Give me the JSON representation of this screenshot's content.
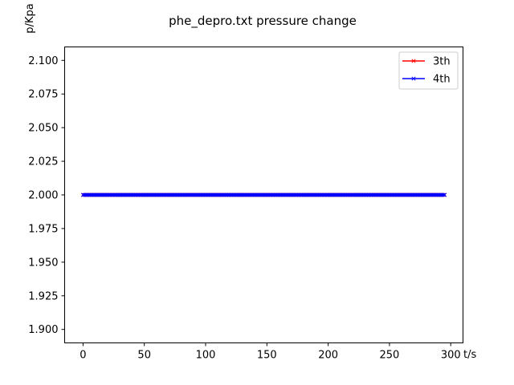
{
  "chart_data": {
    "type": "line",
    "title": "phe_depro.txt pressure change",
    "xlabel": "t/s",
    "ylabel": "p/Kpa",
    "xlim": [
      -15,
      310
    ],
    "ylim": [
      1.89,
      2.11
    ],
    "x_ticks": [
      0,
      50,
      100,
      150,
      200,
      250,
      300
    ],
    "y_ticks": [
      1.9,
      1.925,
      1.95,
      1.975,
      2.0,
      2.025,
      2.05,
      2.075,
      2.1
    ],
    "x_tick_labels": [
      "0",
      "50",
      "100",
      "150",
      "200",
      "250",
      "300"
    ],
    "y_tick_labels": [
      "1.900",
      "1.925",
      "1.950",
      "1.975",
      "2.000",
      "2.025",
      "2.050",
      "2.075",
      "2.100"
    ],
    "grid": false,
    "legend_position": "top-right",
    "x_range": {
      "start": 0,
      "end": 295,
      "step": 1
    },
    "series": [
      {
        "name": "3th",
        "color": "#ff0000",
        "marker": "x",
        "constant_value": 2.0
      },
      {
        "name": "4th",
        "color": "#0000ff",
        "marker": "x",
        "constant_value": 2.0
      }
    ]
  }
}
